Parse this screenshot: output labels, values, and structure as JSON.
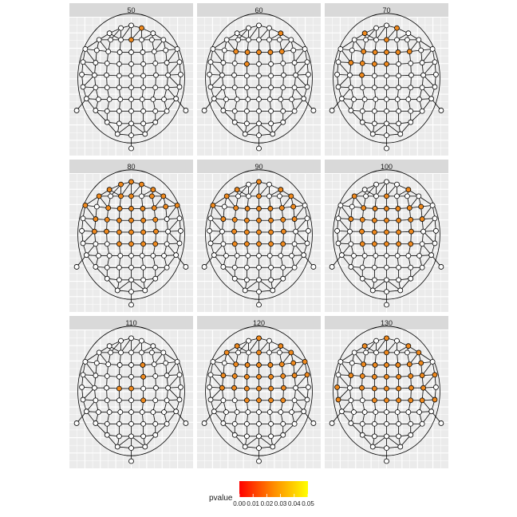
{
  "chart_data": {
    "type": "scatter",
    "description_free": true,
    "facets": [
      "50",
      "60",
      "70",
      "80",
      "90",
      "100",
      "110",
      "120",
      "130"
    ],
    "legend": {
      "title": "pvalue",
      "ticks": [
        "0.00",
        "0.01",
        "0.02",
        "0.03",
        "0.04",
        "0.05"
      ],
      "range": [
        0,
        0.05
      ],
      "colors": [
        "#ff0000",
        "#ff8c00",
        "#ffff00"
      ]
    },
    "colors": {
      "panel_bg": "#ebebeb",
      "strip_bg": "#d9d9d9",
      "grid": "#ffffff",
      "non_sig": "#ffffff",
      "sig": "#f08a1e"
    },
    "electrodes": [
      [
        0,
        0.88
      ],
      [
        -0.18,
        0.84
      ],
      [
        0.18,
        0.84
      ],
      [
        -0.38,
        0.76
      ],
      [
        0.38,
        0.76
      ],
      [
        -0.56,
        0.66
      ],
      [
        -0.36,
        0.66
      ],
      [
        -0.18,
        0.66
      ],
      [
        0,
        0.66
      ],
      [
        0.18,
        0.66
      ],
      [
        0.36,
        0.66
      ],
      [
        0.56,
        0.66
      ],
      [
        -0.8,
        0.52
      ],
      [
        -0.6,
        0.5
      ],
      [
        -0.4,
        0.48
      ],
      [
        -0.2,
        0.47
      ],
      [
        0,
        0.47
      ],
      [
        0.2,
        0.47
      ],
      [
        0.4,
        0.48
      ],
      [
        0.6,
        0.5
      ],
      [
        0.8,
        0.52
      ],
      [
        -0.84,
        0.32
      ],
      [
        -0.62,
        0.31
      ],
      [
        -0.42,
        0.3
      ],
      [
        -0.21,
        0.29
      ],
      [
        0,
        0.29
      ],
      [
        0.21,
        0.29
      ],
      [
        0.42,
        0.3
      ],
      [
        0.62,
        0.31
      ],
      [
        0.84,
        0.32
      ],
      [
        -0.86,
        0.13
      ],
      [
        -0.64,
        0.12
      ],
      [
        -0.43,
        0.12
      ],
      [
        -0.21,
        0.11
      ],
      [
        0,
        0.11
      ],
      [
        0.21,
        0.11
      ],
      [
        0.43,
        0.12
      ],
      [
        0.64,
        0.12
      ],
      [
        0.86,
        0.13
      ],
      [
        -0.84,
        -0.06
      ],
      [
        -0.62,
        -0.07
      ],
      [
        -0.42,
        -0.07
      ],
      [
        -0.21,
        -0.07
      ],
      [
        0,
        -0.07
      ],
      [
        0.21,
        -0.07
      ],
      [
        0.42,
        -0.07
      ],
      [
        0.62,
        -0.07
      ],
      [
        0.84,
        -0.06
      ],
      [
        -0.78,
        -0.24
      ],
      [
        -0.57,
        -0.25
      ],
      [
        -0.38,
        -0.25
      ],
      [
        -0.19,
        -0.25
      ],
      [
        0,
        -0.25
      ],
      [
        0.19,
        -0.25
      ],
      [
        0.38,
        -0.25
      ],
      [
        0.57,
        -0.25
      ],
      [
        0.78,
        -0.24
      ],
      [
        -0.62,
        -0.42
      ],
      [
        -0.42,
        -0.43
      ],
      [
        -0.21,
        -0.43
      ],
      [
        0,
        -0.43
      ],
      [
        0.21,
        -0.43
      ],
      [
        0.42,
        -0.43
      ],
      [
        0.62,
        -0.43
      ],
      [
        -0.42,
        -0.6
      ],
      [
        -0.21,
        -0.62
      ],
      [
        0,
        -0.62
      ],
      [
        0.21,
        -0.62
      ],
      [
        0.42,
        -0.6
      ],
      [
        -0.24,
        -0.78
      ],
      [
        0,
        -0.8
      ],
      [
        0.24,
        -0.78
      ],
      [
        0,
        -1.0
      ],
      [
        -0.95,
        -0.42
      ],
      [
        0.95,
        -0.42
      ]
    ],
    "significant": {
      "50": [
        2,
        8
      ],
      "60": [
        4,
        14,
        15,
        16,
        17,
        18,
        24
      ],
      "70": [
        2,
        3,
        8,
        14,
        15,
        16,
        17,
        18,
        22,
        23,
        24,
        25,
        32
      ],
      "80": [
        0,
        1,
        2,
        3,
        4,
        5,
        7,
        8,
        10,
        11,
        12,
        14,
        15,
        16,
        17,
        18,
        19,
        20,
        22,
        23,
        24,
        25,
        26,
        27,
        31,
        32,
        33,
        34,
        35,
        36,
        42,
        43,
        44,
        45
      ],
      "90": [
        0,
        3,
        4,
        5,
        8,
        11,
        12,
        14,
        15,
        16,
        17,
        18,
        19,
        22,
        23,
        24,
        25,
        26,
        27,
        28,
        32,
        33,
        34,
        35,
        36,
        41,
        42,
        43,
        44,
        45
      ],
      "100": [
        4,
        5,
        8,
        14,
        15,
        16,
        17,
        18,
        19,
        22,
        23,
        24,
        25,
        26,
        27,
        28,
        32,
        33,
        34,
        35,
        36,
        41,
        42,
        43,
        44,
        45
      ],
      "110": [
        17,
        26,
        33,
        34,
        44
      ],
      "120": [
        0,
        3,
        4,
        5,
        8,
        11,
        14,
        15,
        16,
        17,
        18,
        19,
        20,
        22,
        23,
        24,
        25,
        26,
        27,
        28,
        29,
        31,
        32,
        33,
        34,
        35,
        36,
        42,
        43,
        44,
        45
      ],
      "130": [
        0,
        3,
        4,
        8,
        11,
        14,
        15,
        16,
        17,
        18,
        19,
        22,
        23,
        24,
        25,
        26,
        27,
        28,
        29,
        32,
        33,
        34,
        35,
        36,
        37,
        42,
        43,
        44,
        45,
        46,
        47,
        30,
        39
      ]
    }
  }
}
